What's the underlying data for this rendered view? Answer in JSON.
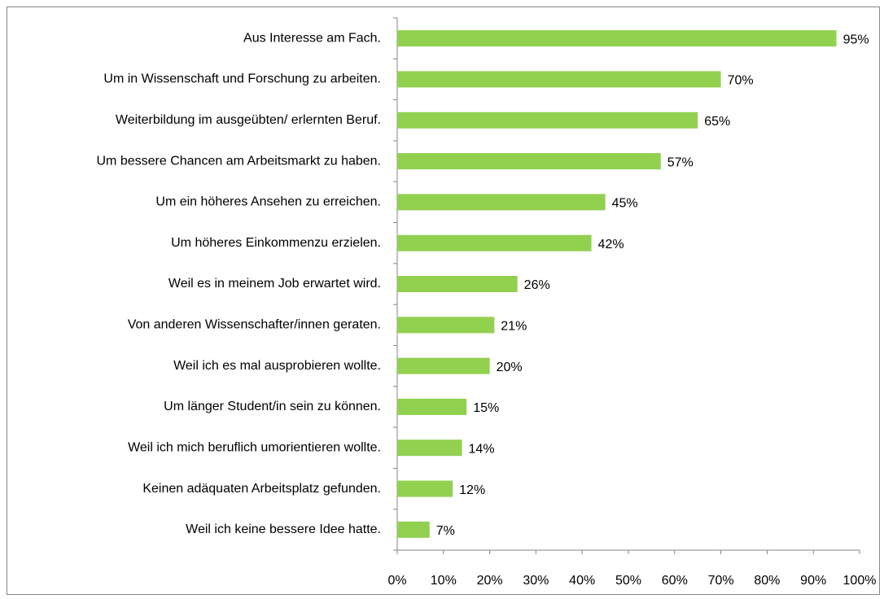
{
  "chart_data": {
    "type": "bar",
    "orientation": "horizontal",
    "categories": [
      "Aus Interesse am Fach.",
      "Um in Wissenschaft und Forschung zu arbeiten.",
      "Weiterbildung im ausgeübten/ erlernten Beruf.",
      "Um bessere Chancen am Arbeitsmarkt zu haben.",
      "Um ein höheres Ansehen zu erreichen.",
      "Um höheres Einkommenzu erzielen.",
      "Weil es in meinem Job erwartet wird.",
      "Von anderen Wissenschafter/innen geraten.",
      "Weil ich es mal ausprobieren wollte.",
      "Um länger Student/in sein zu können.",
      "Weil ich mich beruflich umorientieren wollte.",
      "Keinen adäquaten Arbeitsplatz gefunden.",
      "Weil ich keine bessere Idee hatte."
    ],
    "values": [
      95,
      70,
      65,
      57,
      45,
      42,
      26,
      21,
      20,
      15,
      14,
      12,
      7
    ],
    "value_labels": [
      "95%",
      "70%",
      "65%",
      "57%",
      "45%",
      "42%",
      "26%",
      "21%",
      "20%",
      "15%",
      "14%",
      "12%",
      "7%"
    ],
    "color": "#92d050",
    "xlim": [
      0,
      100
    ],
    "xticks": [
      {
        "value": 0,
        "label": "0%"
      },
      {
        "value": 10,
        "label": "10%"
      },
      {
        "value": 20,
        "label": "20%"
      },
      {
        "value": 30,
        "label": "30%"
      },
      {
        "value": 40,
        "label": "40%"
      },
      {
        "value": 50,
        "label": "50%"
      },
      {
        "value": 60,
        "label": "60%"
      },
      {
        "value": 70,
        "label": "70%"
      },
      {
        "value": 80,
        "label": "80%"
      },
      {
        "value": 90,
        "label": "90%"
      },
      {
        "value": 100,
        "label": "100%"
      }
    ],
    "grid": false
  }
}
